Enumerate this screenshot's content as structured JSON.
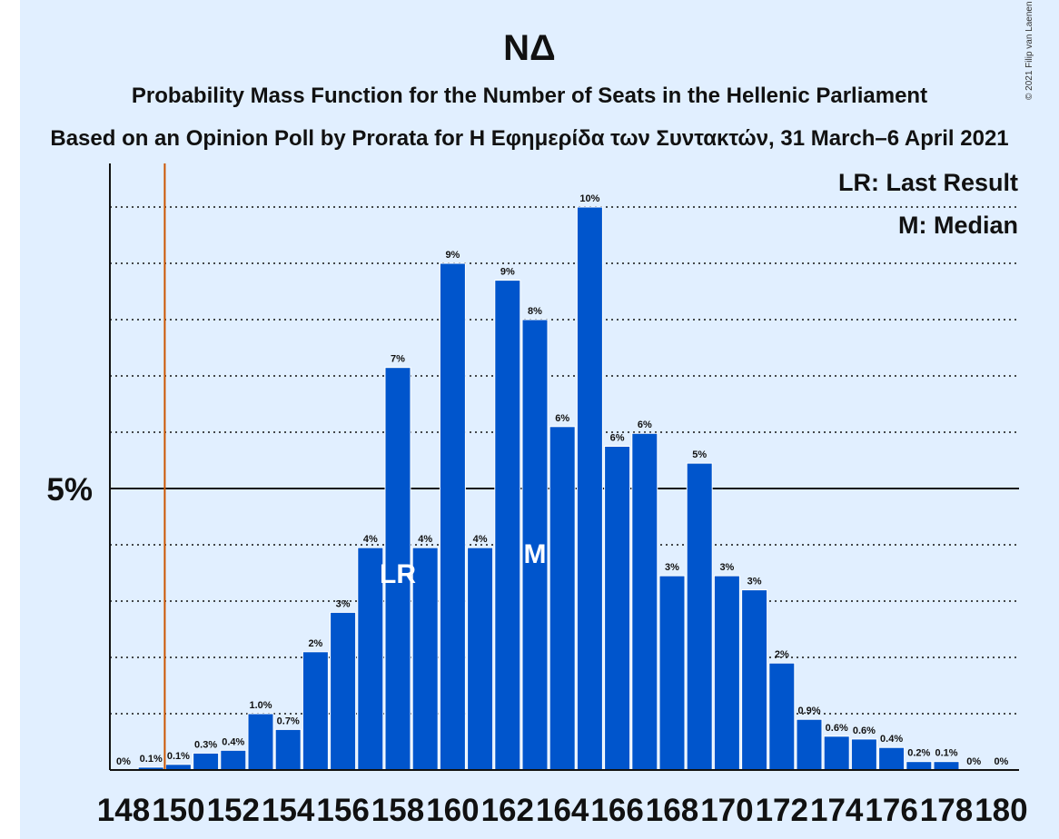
{
  "chart_data": {
    "type": "bar",
    "title": "ΝΔ",
    "subtitle": "Probability Mass Function for the Number of Seats in the Hellenic Parliament",
    "subtitle2": "Based on an Opinion Poll by Prorata for Η Εφημερίδα των Συντακτών, 31 March–6 April 2021",
    "copyright": "© 2021 Filip van Laenen",
    "legend": [
      "LR: Last Result",
      "M: Median"
    ],
    "legend_position": "top-right",
    "ytick_label": "5%",
    "ytick_value": 5,
    "ylim": [
      0,
      10.7
    ],
    "grid": "dotted",
    "x": [
      148,
      149,
      150,
      151,
      152,
      153,
      154,
      155,
      156,
      157,
      158,
      159,
      160,
      161,
      162,
      163,
      164,
      165,
      166,
      167,
      168,
      169,
      170,
      171,
      172,
      173,
      174,
      175,
      176,
      177,
      178,
      179,
      180
    ],
    "xtick_labels": [
      "148",
      "150",
      "152",
      "154",
      "156",
      "158",
      "160",
      "162",
      "164",
      "166",
      "168",
      "170",
      "172",
      "174",
      "176",
      "178",
      "180"
    ],
    "values": [
      0,
      0.05,
      0.1,
      0.3,
      0.35,
      1.0,
      0.72,
      2.1,
      2.8,
      3.95,
      7.15,
      3.95,
      9.0,
      3.95,
      8.7,
      8.0,
      6.1,
      10.0,
      5.75,
      5.98,
      3.45,
      5.45,
      3.45,
      3.2,
      1.9,
      0.9,
      0.6,
      0.55,
      0.4,
      0.15,
      0.15,
      0,
      0
    ],
    "value_labels": [
      "0%",
      "0.1%",
      "0.1%",
      "0.3%",
      "0.4%",
      "1.0%",
      "0.7%",
      "2%",
      "3%",
      "4%",
      "7%",
      "4%",
      "9%",
      "4%",
      "9%",
      "8%",
      "6%",
      "10%",
      "6%",
      "6%",
      "3%",
      "5%",
      "3%",
      "3%",
      "2%",
      "0.9%",
      "0.6%",
      "0.6%",
      "0.4%",
      "0.2%",
      "0.1%",
      "0%",
      "0%"
    ],
    "last_result": 150,
    "last_result_label": "LR",
    "last_result_bar": 158,
    "median": 163,
    "median_label": "M",
    "bar_color": "#0055cc",
    "last_result_line_color": "#cc5500",
    "background_color": "#e1efff"
  }
}
